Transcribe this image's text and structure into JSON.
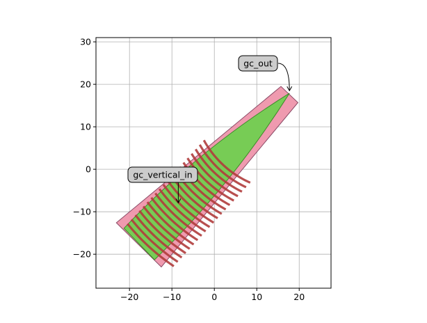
{
  "chart_data": {
    "type": "layout",
    "xlim": [
      -27.9,
      27.5
    ],
    "ylim": [
      -28,
      31
    ],
    "grid": true,
    "x_ticks": [
      -20,
      -10,
      0,
      10,
      20
    ],
    "y_ticks": [
      -20,
      -10,
      0,
      10,
      20,
      30
    ],
    "x_tick_labels": [
      "−20",
      "−10",
      "0",
      "10",
      "20"
    ],
    "y_tick_labels": [
      "−20",
      "−10",
      "0",
      "10",
      "20",
      "30"
    ],
    "shapes": [
      {
        "kind": "cladding",
        "color": "#ee95ab",
        "points": [
          [
            -23.1,
            -12.6
          ],
          [
            -12.5,
            -23.0
          ],
          [
            19.7,
            15.7
          ],
          [
            15.7,
            19.5
          ]
        ]
      },
      {
        "kind": "taper",
        "color": "#77cc55",
        "points": [
          [
            -21.3,
            -13.9
          ],
          [
            -14.1,
            -21.3
          ],
          [
            17.7,
            17.9
          ]
        ]
      }
    ],
    "grating": {
      "color": "#b03c3c",
      "center": [
        17.7,
        17.9
      ],
      "r_min": 23,
      "r_max": 49,
      "count": 20,
      "half_width": 7.4
    },
    "annotations": [
      {
        "text": "gc_out",
        "point": [
          17.7,
          18.5
        ]
      },
      {
        "text": "gc_vertical_in",
        "point": [
          -8.5,
          -7.9
        ]
      }
    ]
  }
}
